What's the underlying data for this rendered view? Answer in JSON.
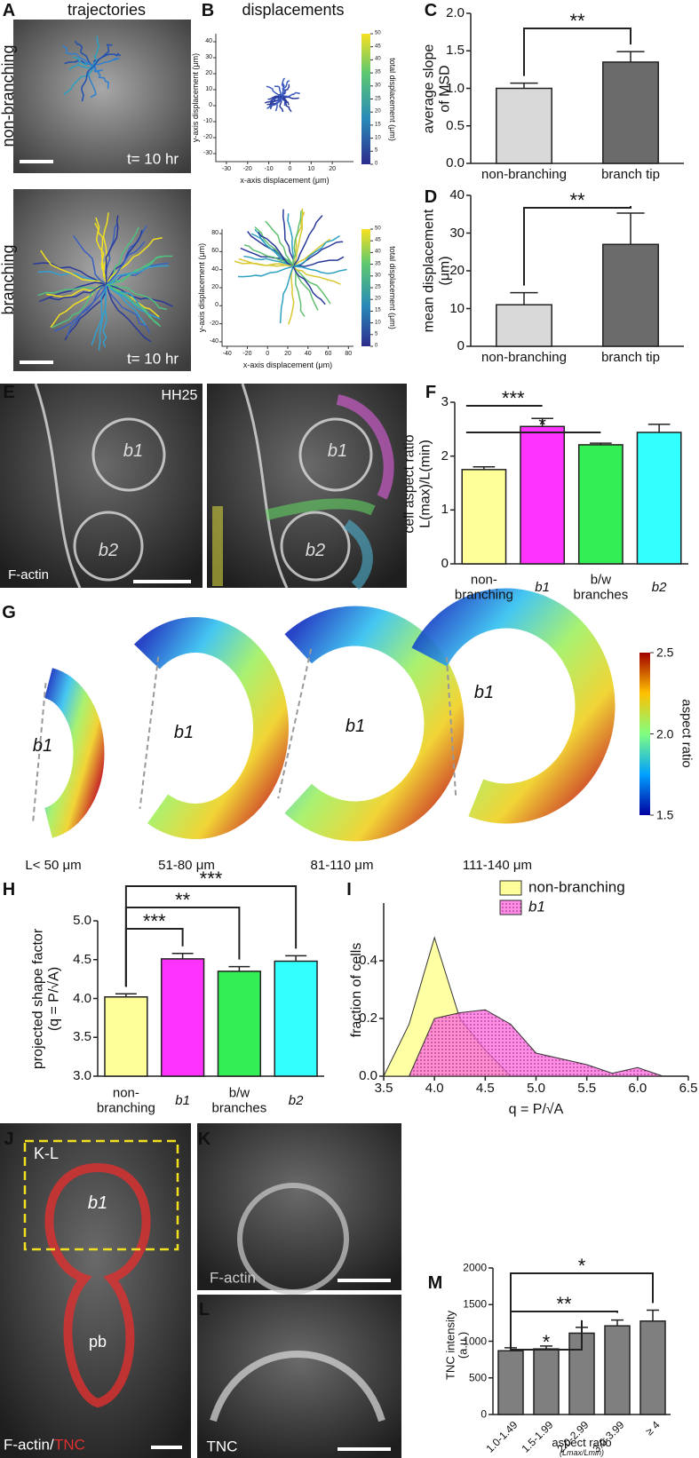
{
  "panel_a": {
    "label": "A",
    "title": "trajectories",
    "rows": [
      "non-branching",
      "branching"
    ],
    "time_labels": [
      "t= 10 hr",
      "t= 10 hr"
    ]
  },
  "panel_b": {
    "label": "B",
    "title": "displacements",
    "plots": [
      {
        "xlabel": "x-axis displacement (μm)",
        "ylabel": "y-axis displacement (μm)",
        "colorbar_label": "total displacement (μm)",
        "xlim": [
          -35,
          30
        ],
        "ylim": [
          -35,
          45
        ],
        "xticks": [
          -30,
          -20,
          -10,
          0,
          10,
          20
        ],
        "yticks": [
          -30,
          -20,
          -10,
          0,
          10,
          20,
          30,
          40
        ],
        "clim": [
          0,
          50
        ],
        "colorbar_ticks": [
          0,
          5,
          10,
          15,
          20,
          25,
          30,
          35,
          40,
          45,
          50
        ]
      },
      {
        "xlabel": "x-axis displacement (μm)",
        "ylabel": "y-axis displacement (μm)",
        "colorbar_label": "total displacement (μm)",
        "xlim": [
          -45,
          85
        ],
        "ylim": [
          -45,
          85
        ],
        "xticks": [
          -40,
          -20,
          0,
          20,
          40,
          60,
          80
        ],
        "yticks": [
          -40,
          -20,
          0,
          20,
          40,
          60,
          80
        ],
        "clim": [
          0,
          50
        ],
        "colorbar_ticks": [
          0,
          5,
          10,
          15,
          20,
          25,
          30,
          35,
          40,
          45,
          50
        ]
      }
    ]
  },
  "panel_e": {
    "label": "E",
    "stage": "HH25",
    "branch_labels": [
      "b1",
      "b2",
      "b1",
      "b2"
    ],
    "stain": "F-actin"
  },
  "panel_g": {
    "label": "G",
    "branch_labels": [
      "b1",
      "b1",
      "b1",
      "b1"
    ],
    "lengths": [
      "L< 50 μm",
      "51-80 μm",
      "81-110 μm",
      "111-140 μm"
    ],
    "colorbar_label": "aspect ratio",
    "clim": [
      1.5,
      2.5
    ],
    "colorbar_ticks": [
      1.5,
      {
        "value": 2,
        "label": "2.0"
      },
      2.5
    ]
  },
  "panel_j": {
    "label": "J",
    "box_label": "K-L",
    "branch_labels": [
      "b1",
      "pb"
    ],
    "stain": "F-actin/",
    "stain_red": "TNC"
  },
  "panel_k": {
    "label": "K",
    "stain": "F-actin"
  },
  "panel_l": {
    "label": "L",
    "stain": "TNC"
  },
  "chart_data": [
    {
      "type": "bar",
      "label": "C",
      "categories": [
        "non-branching",
        "branch tip"
      ],
      "values": [
        1.0,
        1.35
      ],
      "errors": [
        0.07,
        0.14
      ],
      "colors": [
        "#d9d9d9",
        "#6b6b6b"
      ],
      "ylabel": "average slope\nof MSD",
      "ylim": [
        0,
        2
      ],
      "yticks": [
        {
          "value": 0,
          "label": "0.0"
        },
        0.5,
        {
          "value": 1,
          "label": "1.0"
        },
        1.5,
        {
          "value": 2,
          "label": "2.0"
        }
      ],
      "annotations": [
        {
          "text": "**",
          "between": [
            "non-branching",
            "branch tip"
          ]
        }
      ]
    },
    {
      "type": "bar",
      "label": "D",
      "categories": [
        "non-branching",
        "branch tip"
      ],
      "values": [
        11,
        27
      ],
      "errors": [
        3.2,
        8.3
      ],
      "colors": [
        "#d9d9d9",
        "#6b6b6b"
      ],
      "ylabel": "mean displacement\n(μm)",
      "ylim": [
        0,
        40
      ],
      "yticks": [
        0,
        10,
        20,
        30,
        40
      ],
      "annotations": [
        {
          "text": "**",
          "between": [
            "non-branching",
            "branch tip"
          ]
        }
      ]
    },
    {
      "type": "bar",
      "label": "F",
      "categories": [
        "non-\nbranching",
        "b1",
        "b/w\nbranches",
        "b2"
      ],
      "values": [
        1.75,
        2.55,
        2.21,
        2.44
      ],
      "errors": [
        0.05,
        0.15,
        0.03,
        0.15
      ],
      "colors": [
        "#ffff99",
        "#ff33ff",
        "#33ee55",
        "#33ffff"
      ],
      "ylabel": "cell aspect ratio\nL(max)/L(min)",
      "ylim": [
        0,
        3
      ],
      "yticks": [
        0,
        1,
        2,
        3
      ],
      "annotations": [
        {
          "text": "***",
          "between": [
            "non-\nbranching",
            "b1"
          ]
        },
        {
          "text": "*",
          "between": [
            "non-\nbranching",
            "b/w\nbranches"
          ]
        }
      ]
    },
    {
      "type": "bar",
      "label": "H",
      "categories": [
        "non-\nbranching",
        "b1",
        "b/w\nbranches",
        "b2"
      ],
      "values": [
        4.02,
        4.51,
        4.35,
        4.48
      ],
      "errors": [
        0.04,
        0.07,
        0.06,
        0.07
      ],
      "colors": [
        "#ffff99",
        "#ff33ff",
        "#33ee55",
        "#33ffff"
      ],
      "ylabel": "projected shape factor\n(q = P/√A)",
      "ylim": [
        3,
        5
      ],
      "yticks": [
        {
          "value": 3,
          "label": "3.0"
        },
        3.5,
        {
          "value": 4,
          "label": "4.0"
        },
        4.5,
        {
          "value": 5,
          "label": "5.0"
        }
      ],
      "annotations": [
        {
          "text": "***",
          "between": [
            "non-\nbranching",
            "b1"
          ]
        },
        {
          "text": "**",
          "between": [
            "non-\nbranching",
            "b/w\nbranches"
          ]
        },
        {
          "text": "***",
          "between": [
            "non-\nbranching",
            "b2"
          ]
        }
      ]
    },
    {
      "type": "area",
      "label": "I",
      "x": [
        3.5,
        3.75,
        4.0,
        4.25,
        4.5,
        4.75,
        5.0,
        5.25,
        5.5,
        5.75,
        6.0,
        6.25
      ],
      "series": [
        {
          "name": "non-branching",
          "color": "#ffff99",
          "values": [
            0,
            0.18,
            0.48,
            0.2,
            0.09,
            0,
            0,
            0,
            0,
            0,
            0,
            0
          ]
        },
        {
          "name": "b1",
          "color": "#ff66dd",
          "values": [
            0,
            0,
            0.2,
            0.22,
            0.23,
            0.18,
            0.08,
            0.06,
            0.04,
            0.01,
            0.03,
            0
          ]
        }
      ],
      "xlabel": "q = P/√A",
      "ylabel": "fraction of cells",
      "xlim": [
        3.5,
        6.5
      ],
      "ylim": [
        0,
        0.6
      ],
      "xticks": [
        3.5,
        {
          "value": 4,
          "label": "4.0"
        },
        4.5,
        {
          "value": 5,
          "label": "5.0"
        },
        5.5,
        {
          "value": 6,
          "label": "6.0"
        },
        6.5
      ],
      "yticks": [
        {
          "value": 0,
          "label": "0.0"
        },
        0.2,
        0.4
      ],
      "legend": "upper right"
    },
    {
      "type": "bar",
      "label": "M",
      "categories": [
        "1.0-1.49",
        "1.5-1.99",
        "2.0-2.99",
        "3.0-3.99",
        "≥ 4"
      ],
      "values": [
        870,
        895,
        1110,
        1210,
        1275
      ],
      "errors": [
        40,
        40,
        80,
        80,
        150
      ],
      "color": "#7f7f7f",
      "ylabel": "TNC intensity\n(a.u.)",
      "xlabel": "aspect ratio",
      "xlabel_sub": "(Lmax/Lmin)",
      "ylim": [
        0,
        2000
      ],
      "yticks": [
        0,
        500,
        1000,
        1500,
        2000
      ],
      "annotations": [
        {
          "text": "*",
          "between": [
            "1.0-1.49",
            "2.0-2.99"
          ]
        },
        {
          "text": "**",
          "between": [
            "1.0-1.49",
            "3.0-3.99"
          ]
        },
        {
          "text": "*",
          "between": [
            "1.0-1.49",
            "≥ 4"
          ]
        }
      ]
    }
  ]
}
